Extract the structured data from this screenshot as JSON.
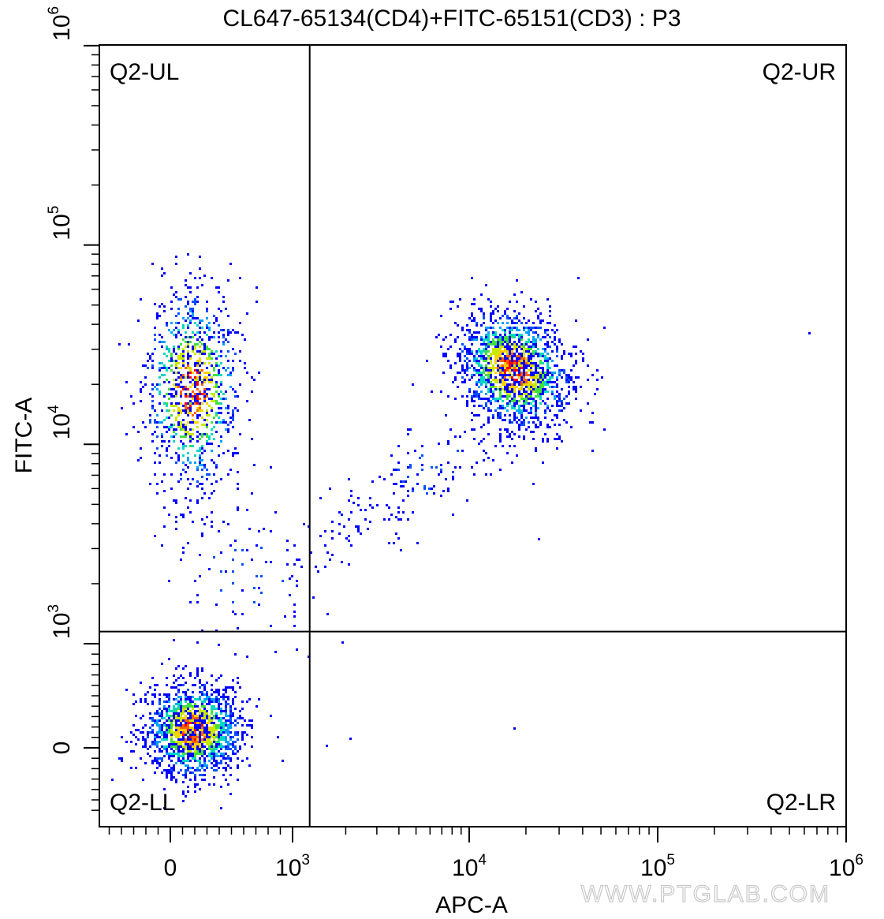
{
  "chart_data": {
    "type": "scatter",
    "subtype": "flow-cytometry-density-dot-plot",
    "title": "CL647-65134(CD4)+FITC-65151(CD3) : P3",
    "xlabel": "APC-A",
    "ylabel": "FITC-A",
    "x_scale": "biexponential",
    "y_scale": "biexponential",
    "xlim": [
      -700,
      1000000
    ],
    "ylim": [
      -700,
      1000000
    ],
    "x_ticks": [
      {
        "value": 0,
        "base": "0",
        "exp": ""
      },
      {
        "value": 1000,
        "base": "10",
        "exp": "3"
      },
      {
        "value": 10000,
        "base": "10",
        "exp": "4"
      },
      {
        "value": 100000,
        "base": "10",
        "exp": "5"
      },
      {
        "value": 1000000,
        "base": "10",
        "exp": "6"
      }
    ],
    "y_ticks": [
      {
        "value": 0,
        "base": "0",
        "exp": ""
      },
      {
        "value": 1000,
        "base": "10",
        "exp": "3"
      },
      {
        "value": 10000,
        "base": "10",
        "exp": "4"
      },
      {
        "value": 100000,
        "base": "10",
        "exp": "5"
      },
      {
        "value": 1000000,
        "base": "10",
        "exp": "6"
      }
    ],
    "gate": {
      "x": 1250,
      "y": 1150
    },
    "quadrants": [
      {
        "name": "Q2-UL",
        "position": "top-left"
      },
      {
        "name": "Q2-UR",
        "position": "top-right"
      },
      {
        "name": "Q2-LL",
        "position": "bottom-left"
      },
      {
        "name": "Q2-LR",
        "position": "bottom-right"
      }
    ],
    "populations": [
      {
        "quadrant": "Q2-LL",
        "center_x": 180,
        "center_y": 180,
        "events": 1600
      },
      {
        "quadrant": "Q2-UL",
        "center_x": 170,
        "center_y": 19000,
        "events": 1050
      },
      {
        "quadrant": "Q2-UR",
        "center_x": 17000,
        "center_y": 24000,
        "events": 1700
      },
      {
        "quadrant": "Q2-UR",
        "center_x": 5500,
        "center_y": 7000,
        "events": 180,
        "note_shape": "diagonal tail"
      },
      {
        "quadrant": "Q2-UL",
        "center_x": 600,
        "center_y": 2200,
        "events": 90,
        "note_shape": "sparse bridge"
      }
    ],
    "grid": false,
    "density_colors": [
      "#0000ff",
      "#0050ff",
      "#00a0ff",
      "#00d8c0",
      "#40e040",
      "#c8e800",
      "#ffd000",
      "#ff6000",
      "#ff0000"
    ],
    "axis_color": "#000000"
  },
  "watermark": "WWW.PTGLAB.COM"
}
